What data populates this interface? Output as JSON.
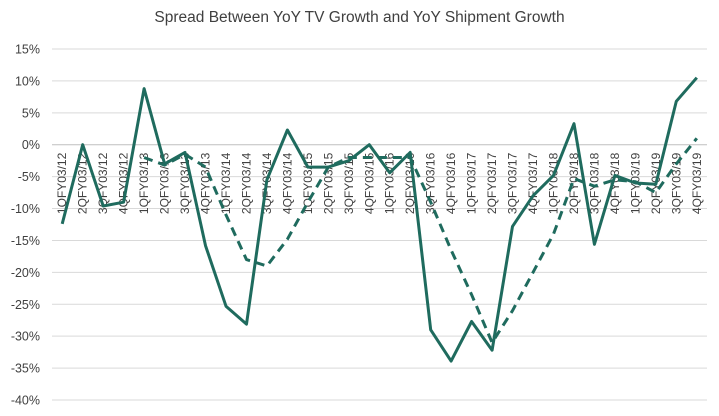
{
  "chart_data": {
    "type": "line",
    "title": "Spread Between YoY TV Growth and YoY Shipment Growth",
    "xlabel": "",
    "ylabel": "",
    "ylim": [
      -40,
      15
    ],
    "yticks": [
      15,
      10,
      5,
      0,
      -5,
      -10,
      -15,
      -20,
      -25,
      -30,
      -35,
      -40
    ],
    "ytick_labels": [
      "15%",
      "10%",
      "5%",
      "0%",
      "-5%",
      "-10%",
      "-15%",
      "-20%",
      "-25%",
      "-30%",
      "-35%",
      "-40%"
    ],
    "grid": "horizontal",
    "legend": "none",
    "categories": [
      "1QFY03/12",
      "2QFY03/12",
      "3QFY03/12",
      "4QFY03/12",
      "1QFY03/13",
      "2QFY03/13",
      "3QFY03/13",
      "4QFY03/13",
      "1QFY03/14",
      "2QFY03/14",
      "3QFY03/14",
      "4QFY03/14",
      "1QFY03/15",
      "2QFY03/15",
      "3QFY03/15",
      "4QFY03/15",
      "1QFY03/16",
      "2QFY03/16",
      "3QFY03/16",
      "4QFY03/16",
      "1QFY03/17",
      "2QFY03/17",
      "3QFY03/17",
      "4QFY03/17",
      "1QFY03/18",
      "2QFY03/18",
      "3QFY03/18",
      "4QFY03/18",
      "1QFY03/19",
      "2QFY03/19",
      "3QFY03/19",
      "4QFY03/19"
    ],
    "series": [
      {
        "style": "solid",
        "color": "#1f6b5e",
        "values": [
          -12.4,
          0.0,
          -9.6,
          -9.0,
          8.8,
          -3.0,
          -1.2,
          -15.8,
          -25.3,
          -28.1,
          -5.5,
          2.3,
          -3.5,
          -3.5,
          -2.5,
          0.0,
          -4.4,
          -1.2,
          -29.0,
          -33.9,
          -27.7,
          -32.2,
          -12.8,
          -8.0,
          -4.8,
          3.3,
          -15.6,
          -4.8,
          -6.0,
          -6.2,
          6.8,
          10.5
        ]
      },
      {
        "style": "dashed",
        "color": "#1f6b5e",
        "values": [
          null,
          null,
          null,
          null,
          -2.0,
          -3.2,
          -1.5,
          -3.5,
          -11.0,
          -18.0,
          -19.0,
          -14.8,
          -9.0,
          -3.5,
          -2.0,
          -2.0,
          -2.0,
          -2.0,
          -9.0,
          -16.5,
          -23.5,
          -31.0,
          -26.0,
          -20.0,
          -14.0,
          -5.3,
          -6.5,
          -5.5,
          -5.8,
          -7.5,
          -3.0,
          1.0
        ]
      }
    ]
  }
}
